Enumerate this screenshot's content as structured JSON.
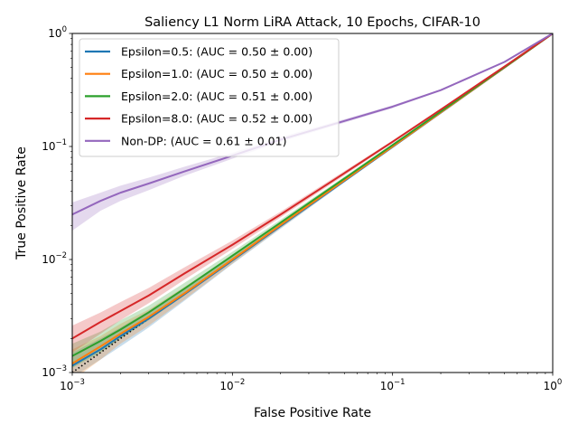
{
  "chart_data": {
    "type": "line",
    "title": "Saliency L1 Norm LiRA Attack, 10 Epochs, CIFAR-10",
    "xlabel": "False Positive Rate",
    "ylabel": "True Positive Rate",
    "xscale": "log",
    "yscale": "log",
    "xlim": [
      0.001,
      1
    ],
    "ylim": [
      0.001,
      1
    ],
    "x_ticks": [
      {
        "value": 0.001,
        "mantissa": "10",
        "exponent": "−3"
      },
      {
        "value": 0.01,
        "mantissa": "10",
        "exponent": "−2"
      },
      {
        "value": 0.1,
        "mantissa": "10",
        "exponent": "−1"
      },
      {
        "value": 1,
        "mantissa": "10",
        "exponent": "0"
      }
    ],
    "y_ticks": [
      {
        "value": 0.001,
        "mantissa": "10",
        "exponent": "−3"
      },
      {
        "value": 0.01,
        "mantissa": "10",
        "exponent": "−2"
      },
      {
        "value": 0.1,
        "mantissa": "10",
        "exponent": "−1"
      },
      {
        "value": 1,
        "mantissa": "10",
        "exponent": "0"
      }
    ],
    "legend_position": "top-left",
    "grid": false,
    "reference_line": {
      "style": "dotted",
      "color": "#000000",
      "x": [
        0.001,
        1
      ],
      "y": [
        0.001,
        1
      ]
    },
    "series": [
      {
        "name": "Epsilon=0.5: (AUC = 0.50 ± 0.00)",
        "color": "#1f77b4",
        "x": [
          0.001,
          0.0015,
          0.002,
          0.003,
          0.005,
          0.01,
          0.02,
          0.05,
          0.1,
          0.2,
          0.5,
          1
        ],
        "y": [
          0.00115,
          0.0016,
          0.0021,
          0.003,
          0.0049,
          0.0098,
          0.0198,
          0.0495,
          0.099,
          0.199,
          0.498,
          1
        ],
        "y_low": [
          0.0009,
          0.0013,
          0.0017,
          0.0025,
          0.0043,
          0.0091,
          0.0187,
          0.048,
          0.097,
          0.196,
          0.495,
          1
        ],
        "y_high": [
          0.0015,
          0.002,
          0.0025,
          0.0035,
          0.0056,
          0.0106,
          0.021,
          0.051,
          0.101,
          0.202,
          0.501,
          1
        ]
      },
      {
        "name": "Epsilon=1.0: (AUC = 0.50 ± 0.00)",
        "color": "#ff7f0e",
        "x": [
          0.001,
          0.0015,
          0.002,
          0.003,
          0.005,
          0.01,
          0.02,
          0.05,
          0.1,
          0.2,
          0.5,
          1
        ],
        "y": [
          0.0012,
          0.0017,
          0.0022,
          0.0031,
          0.005,
          0.01,
          0.0202,
          0.0502,
          0.1,
          0.2,
          0.5,
          1
        ],
        "y_low": [
          0.00085,
          0.0013,
          0.0018,
          0.0026,
          0.0044,
          0.0092,
          0.019,
          0.0485,
          0.098,
          0.197,
          0.497,
          1
        ],
        "y_high": [
          0.0016,
          0.0021,
          0.0027,
          0.0036,
          0.0057,
          0.0108,
          0.0213,
          0.052,
          0.102,
          0.203,
          0.503,
          1
        ]
      },
      {
        "name": "Epsilon=2.0: (AUC = 0.51 ± 0.00)",
        "color": "#2ca02c",
        "x": [
          0.001,
          0.0015,
          0.002,
          0.003,
          0.005,
          0.01,
          0.02,
          0.05,
          0.1,
          0.2,
          0.5,
          1
        ],
        "y": [
          0.0014,
          0.0019,
          0.0024,
          0.0034,
          0.0055,
          0.0108,
          0.0212,
          0.052,
          0.103,
          0.204,
          0.503,
          1
        ],
        "y_low": [
          0.0011,
          0.0015,
          0.002,
          0.0029,
          0.0048,
          0.0099,
          0.02,
          0.05,
          0.1,
          0.201,
          0.5,
          1
        ],
        "y_high": [
          0.0018,
          0.0023,
          0.0029,
          0.0039,
          0.0062,
          0.0117,
          0.0225,
          0.054,
          0.106,
          0.207,
          0.506,
          1
        ]
      },
      {
        "name": "Epsilon=8.0: (AUC = 0.52 ± 0.00)",
        "color": "#d62728",
        "x": [
          0.001,
          0.0015,
          0.002,
          0.003,
          0.005,
          0.01,
          0.02,
          0.05,
          0.1,
          0.2,
          0.5,
          1
        ],
        "y": [
          0.002,
          0.0028,
          0.0035,
          0.0048,
          0.0075,
          0.0135,
          0.025,
          0.058,
          0.11,
          0.212,
          0.51,
          1
        ],
        "y_low": [
          0.0015,
          0.0022,
          0.0029,
          0.0041,
          0.0066,
          0.0124,
          0.0236,
          0.0555,
          0.107,
          0.208,
          0.506,
          1
        ],
        "y_high": [
          0.0026,
          0.0034,
          0.0042,
          0.0056,
          0.0085,
          0.0147,
          0.0265,
          0.0605,
          0.113,
          0.216,
          0.514,
          1
        ]
      },
      {
        "name": "Non-DP: (AUC = 0.61 ± 0.01)",
        "color": "#9467bd",
        "x": [
          0.001,
          0.0015,
          0.002,
          0.003,
          0.005,
          0.01,
          0.02,
          0.05,
          0.1,
          0.2,
          0.5,
          1
        ],
        "y": [
          0.025,
          0.033,
          0.039,
          0.047,
          0.06,
          0.083,
          0.115,
          0.168,
          0.225,
          0.315,
          0.56,
          1
        ],
        "y_low": [
          0.018,
          0.027,
          0.033,
          0.041,
          0.055,
          0.078,
          0.11,
          0.162,
          0.219,
          0.309,
          0.555,
          1
        ],
        "y_high": [
          0.032,
          0.039,
          0.045,
          0.053,
          0.066,
          0.088,
          0.121,
          0.174,
          0.231,
          0.321,
          0.565,
          1
        ]
      }
    ]
  }
}
